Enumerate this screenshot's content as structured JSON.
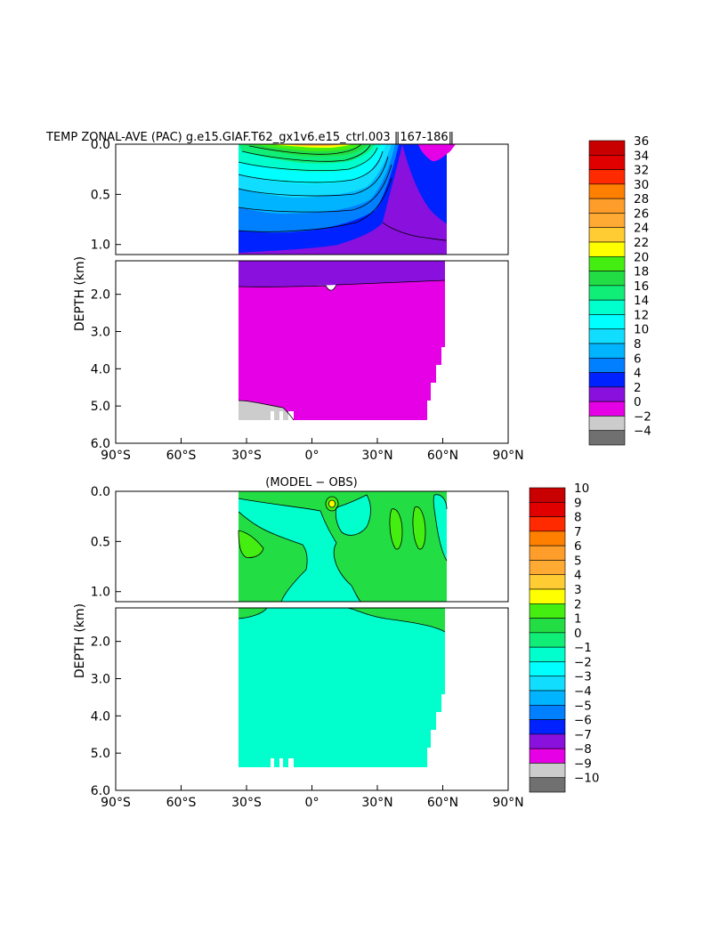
{
  "chart_data": [
    {
      "type": "heatmap",
      "title": "TEMP ZONAL-AVE (PAC) g.e15.GIAF.T62_gx1v6.e15_ctrl.003 ‖167-186‖",
      "ylabel": "DEPTH (km)",
      "xlim": [
        -90,
        90
      ],
      "ylim_upper": [
        0.0,
        1.1
      ],
      "ylim_lower": [
        1.1,
        6.0
      ],
      "x_ticks": [
        "90°S",
        "60°S",
        "30°S",
        "0°",
        "30°N",
        "60°N",
        "90°N"
      ],
      "y_ticks_upper": [
        "0.0",
        "0.5",
        "1.0"
      ],
      "y_ticks_lower": [
        "2.0",
        "3.0",
        "4.0",
        "5.0",
        "6.0"
      ],
      "colorbar_labels": [
        "36",
        "34",
        "32",
        "30",
        "28",
        "26",
        "24",
        "22",
        "20",
        "18",
        "16",
        "14",
        "12",
        "10",
        "8",
        "6",
        "4",
        "2",
        "0",
        "−2",
        "−4"
      ],
      "colorbar_colors": [
        "#c80000",
        "#e00000",
        "#ff2a00",
        "#ff8000",
        "#ff9d2a",
        "#ffaa33",
        "#ffcc33",
        "#ffff00",
        "#44ee11",
        "#22dd44",
        "#11ee77",
        "#00ffcc",
        "#00ffff",
        "#11ddff",
        "#00b4ff",
        "#0080ff",
        "#0022ff",
        "#8a11dd",
        "#e600e6",
        "#cccccc",
        "#707070"
      ]
    },
    {
      "type": "heatmap",
      "title": "(MODEL − OBS)",
      "ylabel": "DEPTH (km)",
      "xlim": [
        -90,
        90
      ],
      "ylim_upper": [
        0.0,
        1.1
      ],
      "ylim_lower": [
        1.1,
        6.0
      ],
      "x_ticks": [
        "90°S",
        "60°S",
        "30°S",
        "0°",
        "30°N",
        "60°N",
        "90°N"
      ],
      "y_ticks_upper": [
        "0.0",
        "0.5",
        "1.0"
      ],
      "y_ticks_lower": [
        "2.0",
        "3.0",
        "4.0",
        "5.0",
        "6.0"
      ],
      "colorbar_labels": [
        "10",
        "9",
        "8",
        "7",
        "6",
        "5",
        "4",
        "3",
        "2",
        "1",
        "0",
        "−1",
        "−2",
        "−3",
        "−4",
        "−5",
        "−6",
        "−7",
        "−8",
        "−9",
        "−10"
      ],
      "colorbar_colors": [
        "#c80000",
        "#e00000",
        "#ff2a00",
        "#ff8000",
        "#ff9d2a",
        "#ffaa33",
        "#ffcc33",
        "#ffff00",
        "#44ee11",
        "#22dd44",
        "#11ee77",
        "#00ffcc",
        "#00ffff",
        "#11ddff",
        "#00b4ff",
        "#0080ff",
        "#0022ff",
        "#8a11dd",
        "#e600e6",
        "#cccccc",
        "#707070"
      ]
    }
  ]
}
